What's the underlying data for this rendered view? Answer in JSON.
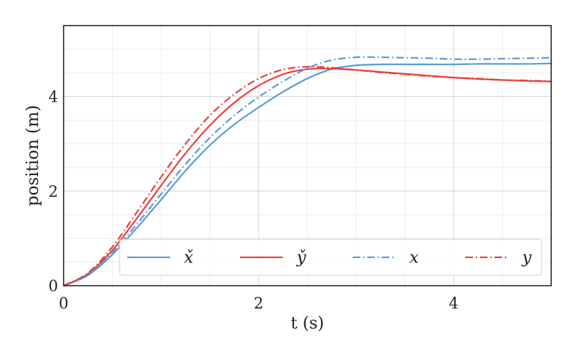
{
  "chart_data": {
    "type": "line",
    "xlabel": "t (s)",
    "ylabel": "position (m)",
    "xlim": [
      0,
      5
    ],
    "ylim": [
      0,
      5.5
    ],
    "xticks": [
      0,
      2,
      4
    ],
    "yticks": [
      0,
      2,
      4
    ],
    "grid": true,
    "legend_position": "bottom-right",
    "series": [
      {
        "name": "x̌",
        "color": "#5b9bd5",
        "dash": "solid",
        "x": [
          0,
          0.25,
          0.5,
          0.75,
          1.0,
          1.25,
          1.5,
          1.75,
          2.0,
          2.25,
          2.5,
          2.75,
          3.0,
          3.25,
          3.5,
          3.75,
          4.0,
          4.25,
          4.5,
          4.75,
          5.0
        ],
        "y": [
          0,
          0.22,
          0.66,
          1.22,
          1.82,
          2.43,
          2.97,
          3.41,
          3.77,
          4.1,
          4.38,
          4.58,
          4.66,
          4.68,
          4.68,
          4.68,
          4.68,
          4.69,
          4.69,
          4.69,
          4.7
        ]
      },
      {
        "name": "y̌",
        "color": "#e8403e",
        "dash": "solid",
        "x": [
          0,
          0.25,
          0.5,
          0.75,
          1.0,
          1.25,
          1.5,
          1.75,
          2.0,
          2.25,
          2.5,
          2.75,
          3.0,
          3.25,
          3.5,
          3.75,
          4.0,
          4.25,
          4.5,
          4.75,
          5.0
        ],
        "y": [
          0,
          0.25,
          0.75,
          1.42,
          2.12,
          2.8,
          3.39,
          3.87,
          4.23,
          4.47,
          4.58,
          4.59,
          4.56,
          4.52,
          4.48,
          4.44,
          4.4,
          4.37,
          4.35,
          4.33,
          4.32
        ]
      },
      {
        "name": "x",
        "color": "#5b9bd5",
        "dash": "dashdot",
        "x": [
          0,
          0.25,
          0.5,
          0.75,
          1.0,
          1.25,
          1.5,
          1.75,
          2.0,
          2.25,
          2.5,
          2.75,
          3.0,
          3.25,
          3.5,
          3.75,
          4.0,
          4.25,
          4.5,
          4.75,
          5.0
        ],
        "y": [
          0,
          0.23,
          0.7,
          1.3,
          1.94,
          2.57,
          3.13,
          3.6,
          3.99,
          4.32,
          4.6,
          4.77,
          4.83,
          4.83,
          4.82,
          4.81,
          4.79,
          4.79,
          4.8,
          4.81,
          4.82
        ]
      },
      {
        "name": "y",
        "color": "#e8403e",
        "dash": "dashdot",
        "x": [
          0,
          0.25,
          0.5,
          0.75,
          1.0,
          1.25,
          1.5,
          1.75,
          2.0,
          2.25,
          2.5,
          2.75,
          3.0,
          3.25,
          3.5,
          3.75,
          4.0,
          4.25,
          4.5,
          4.75,
          5.0
        ],
        "y": [
          0,
          0.27,
          0.82,
          1.55,
          2.3,
          3.0,
          3.6,
          4.05,
          4.38,
          4.57,
          4.63,
          4.61,
          4.56,
          4.51,
          4.47,
          4.43,
          4.4,
          4.38,
          4.35,
          4.34,
          4.32
        ]
      }
    ]
  }
}
